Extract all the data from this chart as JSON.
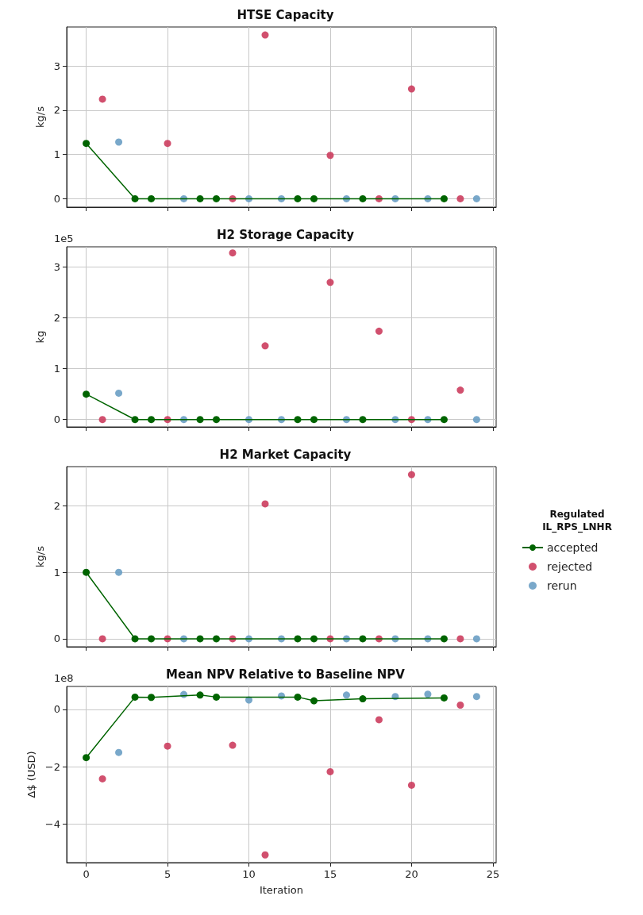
{
  "chart_data": [
    {
      "type": "scatter",
      "title": "HTSE Capacity",
      "ylabel": "kg/s",
      "xlim": [
        -1.2,
        25.2
      ],
      "xticks": [
        0,
        5,
        10,
        15,
        20,
        25
      ],
      "ylim": [
        -0.19,
        3.88
      ],
      "yticks": [
        0,
        1,
        2,
        3
      ],
      "grid": true,
      "marker": "circle",
      "tick_labels": "y",
      "legend": false,
      "series": [
        {
          "type": "line",
          "color": "#006400",
          "x": [
            0,
            3,
            4,
            7,
            8,
            13,
            14,
            17,
            22
          ],
          "values": [
            1.25,
            0,
            0,
            0,
            0,
            0,
            0,
            0,
            0
          ]
        },
        {
          "type": "scatter",
          "color": "#cc3d5e",
          "x": [
            1,
            5,
            9,
            11,
            15,
            18,
            20,
            23
          ],
          "values": [
            2.25,
            1.25,
            0,
            3.7,
            0.98,
            0,
            2.48,
            0
          ]
        },
        {
          "type": "scatter",
          "color": "#6a9ec4",
          "x": [
            2,
            6,
            10,
            12,
            16,
            19,
            21,
            24
          ],
          "values": [
            1.28,
            0,
            0,
            0,
            0,
            0,
            0,
            0
          ]
        }
      ]
    },
    {
      "type": "scatter",
      "title": "H2 Storage Capacity",
      "ylabel": "kg",
      "annotations": [
        "1e5"
      ],
      "xlim": [
        -1.2,
        25.2
      ],
      "xticks": [
        0,
        5,
        10,
        15,
        20,
        25
      ],
      "ylim": [
        -0.145,
        3.4
      ],
      "yticks": [
        0,
        1,
        2,
        3
      ],
      "grid": true,
      "marker": "circle",
      "tick_labels": "y",
      "legend": false,
      "series": [
        {
          "type": "line",
          "color": "#006400",
          "x": [
            0,
            3,
            4,
            7,
            8,
            13,
            14,
            17,
            22
          ],
          "values": [
            0.5,
            0,
            0,
            0,
            0,
            0,
            0,
            0,
            0
          ]
        },
        {
          "type": "scatter",
          "color": "#cc3d5e",
          "x": [
            1,
            5,
            9,
            11,
            15,
            18,
            20,
            23
          ],
          "values": [
            0,
            0,
            3.28,
            1.45,
            2.7,
            1.74,
            0,
            0.58
          ]
        },
        {
          "type": "scatter",
          "color": "#6a9ec4",
          "x": [
            2,
            6,
            10,
            12,
            16,
            19,
            21,
            24
          ],
          "values": [
            0.52,
            0,
            0,
            0,
            0,
            0,
            0,
            0
          ]
        }
      ]
    },
    {
      "type": "scatter",
      "title": "H2 Market Capacity",
      "ylabel": "kg/s",
      "legend_title": "Regulated\nIL_RPS_LNHR",
      "xlim": [
        -1.2,
        25.2
      ],
      "xticks": [
        0,
        5,
        10,
        15,
        20,
        25
      ],
      "ylim": [
        -0.12,
        2.59
      ],
      "yticks": [
        0,
        1,
        2
      ],
      "grid": true,
      "marker": "circle",
      "tick_labels": "y",
      "legend": "right",
      "series": [
        {
          "name": "accepted",
          "type": "line",
          "color": "#006400",
          "x": [
            0,
            3,
            4,
            7,
            8,
            13,
            14,
            17,
            22
          ],
          "values": [
            1,
            0,
            0,
            0,
            0,
            0,
            0,
            0,
            0
          ]
        },
        {
          "name": "rejected",
          "type": "scatter",
          "color": "#cc3d5e",
          "x": [
            1,
            5,
            9,
            11,
            15,
            18,
            20,
            23
          ],
          "values": [
            0,
            0,
            0,
            2.03,
            0,
            0,
            2.47,
            0
          ]
        },
        {
          "name": "rerun",
          "type": "scatter",
          "color": "#6a9ec4",
          "x": [
            2,
            6,
            10,
            12,
            16,
            19,
            21,
            24
          ],
          "values": [
            1,
            0,
            0,
            0,
            0,
            0,
            0,
            0
          ]
        }
      ]
    },
    {
      "type": "scatter",
      "title": "Mean NPV Relative to Baseline NPV",
      "xlabel": "Iteration",
      "ylabel": "Δ$ (USD)",
      "annotations": [
        "1e8"
      ],
      "xlim": [
        -1.2,
        25.2
      ],
      "xticks": [
        0,
        5,
        10,
        15,
        20,
        25
      ],
      "ylim": [
        -5.34,
        0.8
      ],
      "yticks": [
        -4,
        -2,
        0
      ],
      "grid": true,
      "marker": "circle",
      "legend": false,
      "series": [
        {
          "type": "line",
          "color": "#006400",
          "x": [
            0,
            3,
            4,
            7,
            8,
            13,
            14,
            17,
            22
          ],
          "values": [
            -1.68,
            0.43,
            0.42,
            0.5,
            0.43,
            0.43,
            0.3,
            0.37,
            0.4
          ]
        },
        {
          "type": "scatter",
          "color": "#cc3d5e",
          "x": [
            1,
            5,
            9,
            11,
            15,
            18,
            20,
            23
          ],
          "values": [
            -2.42,
            -1.28,
            -1.25,
            -5.07,
            -2.17,
            -0.36,
            -2.64,
            0.15
          ]
        },
        {
          "type": "scatter",
          "color": "#6a9ec4",
          "x": [
            2,
            6,
            10,
            12,
            16,
            19,
            21,
            24
          ],
          "values": [
            -1.5,
            0.52,
            0.33,
            0.47,
            0.5,
            0.45,
            0.53,
            0.45
          ]
        }
      ]
    }
  ]
}
